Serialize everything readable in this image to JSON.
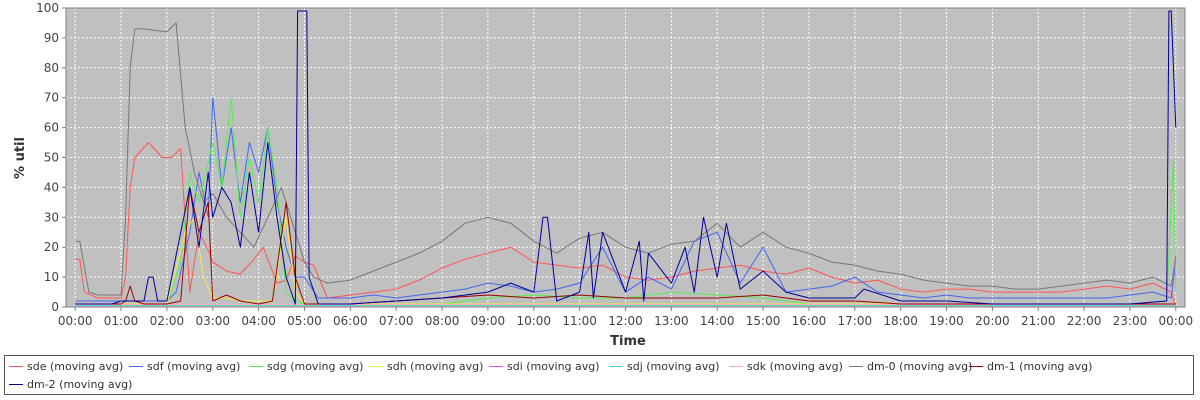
{
  "chart_data": {
    "type": "line",
    "xlabel": "Time",
    "ylabel": "% util",
    "ylim": [
      0,
      100
    ],
    "xlim_hours": [
      -0.2,
      24.2
    ],
    "yticks": [
      0,
      10,
      20,
      30,
      40,
      50,
      60,
      70,
      80,
      90,
      100
    ],
    "xticks": [
      "00:00",
      "01:00",
      "02:00",
      "03:00",
      "04:00",
      "05:00",
      "06:00",
      "07:00",
      "08:00",
      "09:00",
      "10:00",
      "11:00",
      "12:00",
      "13:00",
      "14:00",
      "15:00",
      "16:00",
      "17:00",
      "18:00",
      "19:00",
      "20:00",
      "21:00",
      "22:00",
      "23:00",
      "00:00"
    ],
    "grid": true,
    "plot_background": "#c0c0c0",
    "legend_position": "bottom",
    "series": [
      {
        "name": "sde (moving avg)",
        "color": "#ff5555",
        "x": [
          0,
          0.1,
          0.2,
          0.5,
          1,
          1.1,
          1.2,
          1.3,
          1.6,
          1.9,
          2.1,
          2.3,
          2.5,
          2.7,
          2.9,
          3,
          3.3,
          3.6,
          3.9,
          4.1,
          4.4,
          4.6,
          4.8,
          5,
          5.2,
          5.5,
          6,
          6.5,
          7,
          7.5,
          8,
          8.5,
          9,
          9.5,
          10,
          10.5,
          11,
          11.5,
          12,
          12.5,
          13,
          13.5,
          14,
          14.5,
          15,
          15.5,
          16,
          16.5,
          17,
          17.5,
          18,
          18.5,
          19,
          19.5,
          20,
          20.5,
          21,
          21.5,
          22,
          22.5,
          23,
          23.5,
          23.9,
          24
        ],
        "y": [
          16,
          16,
          5,
          3,
          3,
          10,
          40,
          50,
          55,
          50,
          50,
          53,
          5,
          25,
          19,
          15,
          12,
          11,
          16,
          20,
          8,
          9,
          17,
          15,
          14,
          3,
          4,
          5,
          6,
          9,
          13,
          16,
          18,
          20,
          15,
          14,
          13,
          14,
          10,
          9,
          10,
          12,
          13,
          14,
          12,
          11,
          13,
          10,
          8,
          9,
          6,
          5,
          6,
          6,
          5,
          5,
          5,
          5,
          6,
          7,
          6,
          8,
          5,
          0
        ]
      },
      {
        "name": "sdf (moving avg)",
        "color": "#4466ee",
        "x": [
          0,
          0.5,
          1,
          1.3,
          1.5,
          2,
          2.2,
          2.5,
          2.7,
          2.9,
          3,
          3.2,
          3.4,
          3.6,
          3.8,
          4,
          4.2,
          4.4,
          4.6,
          4.8,
          5,
          5.3,
          6,
          6.5,
          7,
          7.5,
          8,
          8.5,
          9,
          9.5,
          10,
          10.5,
          11,
          11.5,
          12,
          12.5,
          13,
          13.5,
          14,
          14.5,
          15,
          15.5,
          16,
          16.5,
          17,
          17.5,
          18,
          18.5,
          19,
          19.5,
          20,
          20.5,
          21,
          21.5,
          22,
          22.5,
          23,
          23.5,
          23.9,
          24
        ],
        "y": [
          2,
          2,
          2,
          2,
          2,
          2,
          5,
          25,
          45,
          30,
          70,
          40,
          60,
          35,
          55,
          45,
          60,
          35,
          20,
          10,
          10,
          3,
          3,
          4,
          3,
          4,
          5,
          6,
          8,
          7,
          5,
          6,
          8,
          20,
          5,
          10,
          6,
          22,
          25,
          8,
          20,
          5,
          6,
          7,
          10,
          5,
          4,
          3,
          4,
          3,
          3,
          3,
          3,
          3,
          3,
          3,
          4,
          5,
          3,
          15
        ]
      },
      {
        "name": "sdg (moving avg)",
        "color": "#55ee55",
        "x": [
          0,
          1,
          2,
          2.3,
          2.5,
          2.7,
          3,
          3.2,
          3.4,
          3.6,
          3.8,
          4,
          4.2,
          4.4,
          4.6,
          4.8,
          5,
          6,
          7,
          8,
          9,
          10,
          11,
          12,
          13,
          14,
          15,
          16,
          17,
          18,
          19,
          20,
          21,
          22,
          23,
          23.8,
          23.95,
          24
        ],
        "y": [
          1,
          1,
          1,
          15,
          45,
          35,
          55,
          40,
          70,
          30,
          50,
          35,
          60,
          40,
          5,
          2,
          1,
          1,
          1,
          1,
          3,
          4,
          3,
          3,
          5,
          4,
          3,
          1,
          1,
          1,
          1,
          1,
          1,
          1,
          1,
          2,
          50,
          5
        ]
      },
      {
        "name": "sdh (moving avg)",
        "color": "#eeee44",
        "x": [
          0,
          1,
          2,
          2.4,
          2.6,
          2.8,
          3,
          3.3,
          3.6,
          4,
          4.3,
          4.6,
          4.8,
          5,
          6,
          10,
          15,
          20,
          24
        ],
        "y": [
          1,
          1,
          1,
          25,
          30,
          10,
          3,
          3,
          2,
          2,
          2,
          30,
          5,
          1,
          1,
          1,
          1,
          1,
          1
        ]
      },
      {
        "name": "sdi (moving avg)",
        "color": "#ee44ee",
        "x": [
          0,
          12,
          24
        ],
        "y": [
          0.5,
          0.5,
          0.5
        ]
      },
      {
        "name": "sdj (moving avg)",
        "color": "#44dddd",
        "x": [
          0,
          12,
          24
        ],
        "y": [
          0.5,
          0.5,
          0.5
        ]
      },
      {
        "name": "sdk (moving avg)",
        "color": "#ffaaaa",
        "x": [
          0,
          12,
          24
        ],
        "y": [
          0.8,
          0.8,
          0.8
        ]
      },
      {
        "name": "dm-0 (moving avg)",
        "color": "#777777",
        "x": [
          0,
          0.1,
          0.3,
          0.5,
          1,
          1.1,
          1.2,
          1.3,
          1.5,
          2,
          2.2,
          2.4,
          2.6,
          2.8,
          3,
          3.3,
          3.6,
          3.9,
          4.2,
          4.5,
          4.8,
          5,
          5.2,
          5.5,
          6,
          6.5,
          7,
          7.5,
          8,
          8.5,
          9,
          9.5,
          10,
          10.5,
          11,
          11.5,
          12,
          12.5,
          13,
          13.5,
          14,
          14.5,
          15,
          15.5,
          16,
          16.5,
          17,
          17.5,
          18,
          18.5,
          19,
          19.5,
          20,
          20.5,
          21,
          21.5,
          22,
          22.5,
          23,
          23.5,
          23.9,
          24
        ],
        "y": [
          22,
          22,
          5,
          4,
          4,
          30,
          80,
          93,
          93,
          92,
          95,
          60,
          45,
          35,
          38,
          30,
          25,
          20,
          30,
          40,
          25,
          15,
          10,
          8,
          9,
          12,
          15,
          18,
          22,
          28,
          30,
          28,
          22,
          18,
          23,
          25,
          20,
          18,
          21,
          22,
          28,
          20,
          25,
          20,
          18,
          15,
          14,
          12,
          11,
          9,
          8,
          7,
          7,
          6,
          6,
          7,
          8,
          9,
          8,
          10,
          7,
          17
        ]
      },
      {
        "name": "dm-1 (moving avg)",
        "color": "#990000",
        "x": [
          0,
          1,
          1.1,
          1.2,
          1.3,
          1.5,
          2,
          2.3,
          2.5,
          2.7,
          2.9,
          3,
          3.3,
          3.6,
          4,
          4.3,
          4.6,
          4.8,
          5,
          6,
          7,
          8,
          9,
          10,
          11,
          12,
          13,
          14,
          15,
          16,
          17,
          18,
          19,
          20,
          21,
          22,
          23,
          24
        ],
        "y": [
          1,
          1,
          2,
          7,
          2,
          1,
          1,
          2,
          40,
          25,
          35,
          2,
          4,
          2,
          1,
          2,
          35,
          10,
          1,
          1,
          2,
          3,
          4,
          3,
          4,
          3,
          3,
          3,
          4,
          2,
          2,
          1,
          1,
          1,
          1,
          1,
          1,
          1
        ]
      },
      {
        "name": "dm-2 (moving avg)",
        "color": "#000099",
        "x": [
          0,
          0.8,
          1,
          1.5,
          1.6,
          1.7,
          1.8,
          2,
          2.5,
          2.7,
          2.9,
          3,
          3.2,
          3.4,
          3.6,
          3.8,
          4,
          4.2,
          4.4,
          4.6,
          4.8,
          4.85,
          4.9,
          5.05,
          5.1,
          5.3,
          6,
          7,
          8,
          9,
          9.5,
          10,
          10.2,
          10.3,
          10.5,
          11,
          11.2,
          11.3,
          11.5,
          12,
          12.3,
          12.4,
          12.5,
          13,
          13.3,
          13.5,
          13.7,
          14,
          14.2,
          14.5,
          15,
          15.5,
          16,
          17,
          17.2,
          18,
          19,
          20,
          21,
          22,
          23,
          23.8,
          23.85,
          23.9,
          24
        ],
        "y": [
          1,
          1,
          2,
          2,
          10,
          10,
          2,
          2,
          40,
          20,
          45,
          30,
          40,
          35,
          20,
          45,
          25,
          55,
          30,
          10,
          1,
          99,
          99,
          99,
          10,
          1,
          1,
          2,
          3,
          5,
          8,
          5,
          30,
          30,
          2,
          5,
          25,
          3,
          25,
          5,
          22,
          2,
          18,
          8,
          20,
          5,
          30,
          10,
          28,
          6,
          12,
          5,
          3,
          3,
          6,
          2,
          2,
          1,
          1,
          1,
          1,
          2,
          99,
          99,
          60
        ]
      }
    ]
  }
}
